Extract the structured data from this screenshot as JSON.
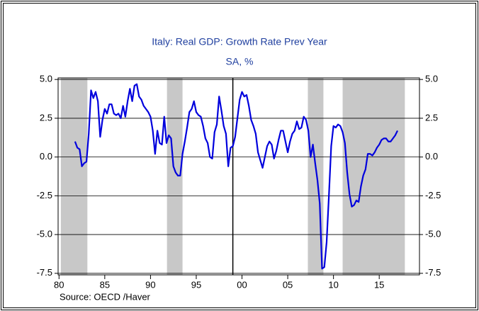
{
  "chart_data": {
    "type": "line",
    "title": "Italy: Real GDP: Growth Rate Prev Year",
    "subtitle": "SA, %",
    "source": "Source:  OECD /Haver",
    "x": [
      1981.75,
      1982,
      1982.25,
      1982.5,
      1982.75,
      1983,
      1983.25,
      1983.5,
      1983.75,
      1984,
      1984.25,
      1984.5,
      1984.75,
      1985,
      1985.25,
      1985.5,
      1985.75,
      1986,
      1986.25,
      1986.5,
      1986.75,
      1987,
      1987.25,
      1987.5,
      1987.75,
      1988,
      1988.25,
      1988.5,
      1988.75,
      1989,
      1989.25,
      1989.5,
      1989.75,
      1990,
      1990.25,
      1990.5,
      1990.75,
      1991,
      1991.25,
      1991.5,
      1991.75,
      1992,
      1992.25,
      1992.5,
      1992.75,
      1993,
      1993.25,
      1993.5,
      1993.75,
      1994,
      1994.25,
      1994.5,
      1994.75,
      1995,
      1995.25,
      1995.5,
      1995.75,
      1996,
      1996.25,
      1996.5,
      1996.75,
      1997,
      1997.25,
      1997.5,
      1997.75,
      1998,
      1998.25,
      1998.5,
      1998.75,
      1999,
      1999.25,
      1999.5,
      1999.75,
      2000,
      2000.25,
      2000.5,
      2000.75,
      2001,
      2001.25,
      2001.5,
      2001.75,
      2002,
      2002.25,
      2002.5,
      2002.75,
      2003,
      2003.25,
      2003.5,
      2003.75,
      2004,
      2004.25,
      2004.5,
      2004.75,
      2005,
      2005.25,
      2005.5,
      2005.75,
      2006,
      2006.25,
      2006.5,
      2006.75,
      2007,
      2007.25,
      2007.5,
      2007.75,
      2008,
      2008.25,
      2008.5,
      2008.75,
      2009,
      2009.25,
      2009.5,
      2009.75,
      2010,
      2010.25,
      2010.5,
      2010.75,
      2011,
      2011.25,
      2011.5,
      2011.75,
      2012,
      2012.25,
      2012.5,
      2012.75,
      2013,
      2013.25,
      2013.5,
      2013.75,
      2014,
      2014.25,
      2014.5,
      2014.75,
      2015,
      2015.25,
      2015.5,
      2015.75,
      2016,
      2016.25,
      2016.5,
      2016.75,
      2017
    ],
    "series": [
      {
        "color": "#0000dd",
        "values": [
          1.0,
          0.6,
          0.5,
          -0.6,
          -0.4,
          -0.3,
          1.5,
          4.3,
          3.8,
          4.2,
          3.6,
          1.3,
          2.4,
          3.1,
          2.8,
          3.4,
          3.4,
          2.8,
          2.7,
          2.8,
          2.5,
          3.3,
          2.6,
          3.6,
          4.4,
          3.6,
          4.6,
          4.7,
          3.9,
          3.7,
          3.3,
          3.1,
          2.9,
          2.6,
          1.7,
          0.2,
          1.7,
          0.9,
          0.8,
          2.6,
          0.9,
          1.4,
          1.2,
          -0.6,
          -1.0,
          -1.2,
          -1.2,
          0.2,
          1.0,
          1.9,
          2.9,
          3.1,
          3.6,
          2.9,
          2.7,
          2.6,
          2.0,
          1.2,
          0.9,
          0.0,
          -0.1,
          1.6,
          2.1,
          3.9,
          3.0,
          2.0,
          1.5,
          -0.6,
          0.6,
          0.7,
          1.3,
          2.5,
          3.7,
          4.2,
          3.9,
          4.0,
          3.3,
          2.4,
          2.0,
          1.5,
          0.3,
          -0.2,
          -0.7,
          0.0,
          0.7,
          1.0,
          0.8,
          -0.1,
          0.4,
          1.1,
          1.7,
          1.7,
          1.0,
          0.3,
          1.0,
          1.5,
          1.7,
          2.3,
          1.8,
          1.9,
          2.6,
          2.4,
          1.7,
          0.0,
          0.8,
          -0.4,
          -1.5,
          -3.0,
          -7.2,
          -7.1,
          -5.5,
          -2.5,
          0.7,
          2.0,
          1.9,
          2.1,
          2.0,
          1.6,
          0.9,
          -1.0,
          -2.4,
          -3.2,
          -3.1,
          -2.8,
          -2.9,
          -1.9,
          -1.2,
          -0.8,
          0.2,
          0.2,
          0.1,
          0.3,
          0.6,
          0.8,
          1.1,
          1.2,
          1.2,
          1.0,
          1.0,
          1.2,
          1.4,
          1.7
        ]
      }
    ],
    "xlim": [
      1979.9,
      2019.4
    ],
    "ylim": [
      -7.6,
      5.1
    ],
    "xticks": [
      {
        "value": 1980,
        "label": "80"
      },
      {
        "value": 1985,
        "label": "85"
      },
      {
        "value": 1990,
        "label": "90"
      },
      {
        "value": 1995,
        "label": "95"
      },
      {
        "value": 2000,
        "label": "00"
      },
      {
        "value": 2005,
        "label": "05"
      },
      {
        "value": 2010,
        "label": "10"
      },
      {
        "value": 2015,
        "label": "15"
      }
    ],
    "yticks": [
      {
        "value": 5,
        "label": "5.0"
      },
      {
        "value": 2.5,
        "label": "2.5"
      },
      {
        "value": 0,
        "label": "0.0"
      },
      {
        "value": -2.5,
        "label": "-2.5"
      },
      {
        "value": -5,
        "label": "-5.0"
      },
      {
        "value": -7.5,
        "label": "-7.5"
      }
    ],
    "grid": true,
    "shaded_periods": [
      [
        1980.2,
        1983.1
      ],
      [
        1991.8,
        1993.5
      ],
      [
        2007.2,
        2008.9
      ],
      [
        2011.0,
        2017.8
      ]
    ],
    "vline": 1999.0
  }
}
